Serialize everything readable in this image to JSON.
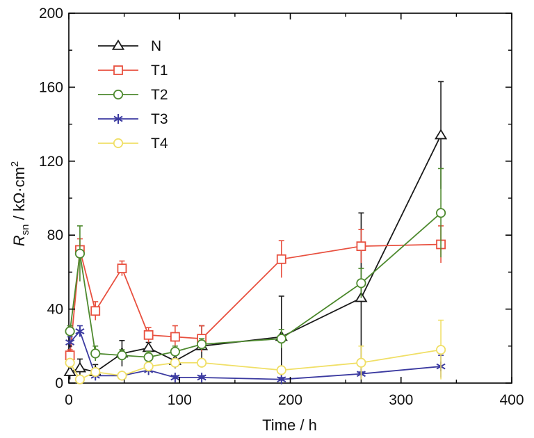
{
  "chart_data": {
    "type": "line",
    "xlabel": "Time / h",
    "ylabel": {
      "symbol": "R",
      "subscript": "sn",
      "unit_before": " / kΩ·cm",
      "unit_superscript": "2"
    },
    "xlim": [
      0,
      400
    ],
    "ylim": [
      0,
      200
    ],
    "xticks": [
      "0",
      "100",
      "200",
      "300",
      "400"
    ],
    "yticks": [
      "0",
      "40",
      "80",
      "120",
      "160",
      "200"
    ],
    "grid": false,
    "legend_position": "top-left",
    "series": [
      {
        "name": "N",
        "color": "#1a1a1a",
        "marker": "triangle",
        "x": [
          1,
          10,
          24,
          48,
          72,
          96,
          120,
          192,
          264,
          336
        ],
        "y": [
          6,
          8,
          6,
          16,
          19,
          12,
          20,
          25,
          46,
          134
        ],
        "err": [
          4,
          5,
          4,
          7,
          3,
          4,
          11,
          22,
          46,
          29
        ]
      },
      {
        "name": "T1",
        "color": "#e8503f",
        "marker": "square",
        "x": [
          1,
          10,
          24,
          48,
          72,
          96,
          120,
          192,
          264,
          336
        ],
        "y": [
          15,
          72,
          39,
          62,
          26,
          25,
          24,
          67,
          74,
          75
        ],
        "err": [
          3,
          6,
          5,
          4,
          4,
          6,
          7,
          10,
          9,
          10
        ]
      },
      {
        "name": "T2",
        "color": "#4e8a2f",
        "marker": "circle",
        "x": [
          1,
          10,
          24,
          48,
          72,
          96,
          120,
          192,
          264,
          336
        ],
        "y": [
          28,
          70,
          16,
          15,
          14,
          17,
          21,
          24,
          54,
          92
        ],
        "err": [
          3,
          15,
          4,
          3,
          3,
          3,
          3,
          5,
          8,
          24
        ]
      },
      {
        "name": "T3",
        "color": "#3b3aa0",
        "marker": "asterisk",
        "x": [
          1,
          10,
          24,
          48,
          72,
          96,
          120,
          192,
          264,
          336
        ],
        "y": [
          22,
          28,
          4,
          4,
          7,
          3,
          3,
          2,
          5,
          9
        ],
        "err": [
          3,
          3,
          1,
          1,
          1,
          1,
          1,
          1,
          1,
          6
        ]
      },
      {
        "name": "T4",
        "color": "#f0df66",
        "marker": "circle",
        "x": [
          1,
          10,
          24,
          48,
          72,
          96,
          120,
          192,
          264,
          336
        ],
        "y": [
          11,
          2,
          6,
          4,
          9,
          11,
          11,
          7,
          11,
          18
        ],
        "err": [
          1,
          1,
          1,
          1,
          1,
          1,
          1,
          2,
          9,
          16
        ]
      }
    ]
  }
}
